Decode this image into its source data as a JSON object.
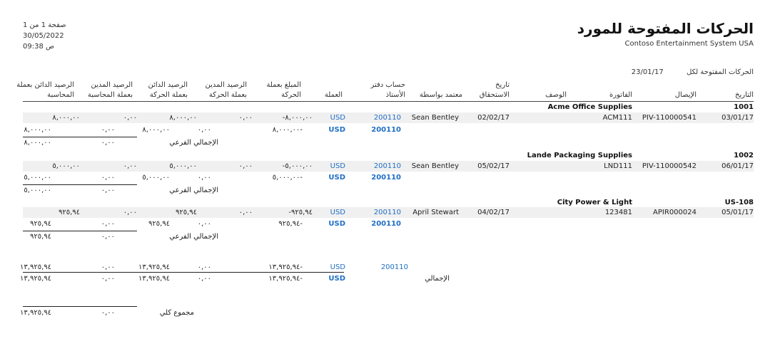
{
  "report": {
    "title": "الحركات المفتوحة للمورد",
    "company": "Contoso Entertainment System USA",
    "page": "صفحة 1 من 1",
    "date": "30/05/2022",
    "time": "09:38 ص",
    "as_of_label": "الحركات المفتوحة لكل",
    "as_of_date": "23/01/17"
  },
  "columns": {
    "date": "التاريخ",
    "voucher": "الإيصال",
    "invoice": "الفاتورة",
    "description": "الوصف",
    "due_date": "تاريخ الاستحقاق",
    "approved_by": "معتمد بواسطة",
    "ledger_account": "حساب دفتر الأستاذ",
    "currency": "العملة",
    "amount_cur": "المبلغ بعملة الحركة",
    "debit_cur": "الرصيد المدين بعملة الحركة",
    "credit_cur": "الرصيد الدائن بعملة الحركة",
    "debit_acc": "الرصيد المدين بعملة المحاسبة",
    "credit_acc": "الرصيد الدائن بعملة المحاسبة"
  },
  "vendors": [
    {
      "id": "1001",
      "name": "Acme Office Supplies",
      "date": "03/01/17",
      "voucher": "PIV-110000541",
      "invoice": "ACM111",
      "due": "02/02/17",
      "approver": "Sean Bentley",
      "ledger": "200110",
      "currency": "USD",
      "amount": "-٨,٠٠٠,٠٠",
      "debit_cur": "٠,٠٠",
      "credit_cur": "٨,٠٠٠,٠٠",
      "debit_acc": "٠,٠٠",
      "credit_acc": "٨,٠٠٠,٠٠",
      "sum_ledger": "200110",
      "sum_currency": "USD",
      "sum_amount": "٨,٠٠٠,٠٠-",
      "sum_debit_cur": "٠,٠٠",
      "sum_credit_cur": "٨,٠٠٠,٠٠",
      "sum_debit_acc": "٠,٠٠",
      "sum_credit_acc": "٨,٠٠٠,٠٠",
      "sub_label": "الإجمالي الفرعي",
      "sub_debit_acc": "٠,٠٠",
      "sub_credit_acc": "٨,٠٠٠,٠٠"
    },
    {
      "id": "1002",
      "name": "Lande Packaging Supplies",
      "date": "06/01/17",
      "voucher": "PIV-110000542",
      "invoice": "LND111",
      "due": "05/02/17",
      "approver": "Sean Bentley",
      "ledger": "200110",
      "currency": "USD",
      "amount": "-٥,٠٠٠,٠٠",
      "debit_cur": "٠,٠٠",
      "credit_cur": "٥,٠٠٠,٠٠",
      "debit_acc": "٠,٠٠",
      "credit_acc": "٥,٠٠٠,٠٠",
      "sum_ledger": "200110",
      "sum_currency": "USD",
      "sum_amount": "٥,٠٠٠,٠٠-",
      "sum_debit_cur": "٠,٠٠",
      "sum_credit_cur": "٥,٠٠٠,٠٠",
      "sum_debit_acc": "٠,٠٠",
      "sum_credit_acc": "٥,٠٠٠,٠٠",
      "sub_label": "الإجمالي الفرعي",
      "sub_debit_acc": "٠,٠٠",
      "sub_credit_acc": "٥,٠٠٠,٠٠"
    },
    {
      "id": "US-108",
      "name": "City Power & Light",
      "date": "05/01/17",
      "voucher": "APIR000024",
      "invoice": "123481",
      "due": "04/02/17",
      "approver": "April Stewart",
      "ledger": "200110",
      "currency": "USD",
      "amount": "-٩٢٥,٩٤",
      "debit_cur": "٠,٠٠",
      "credit_cur": "٩٢٥,٩٤",
      "debit_acc": "٠,٠٠",
      "credit_acc": "٩٢٥,٩٤",
      "sum_ledger": "200110",
      "sum_currency": "USD",
      "sum_amount": "٩٢٥,٩٤-",
      "sum_debit_cur": "٠,٠٠",
      "sum_credit_cur": "٩٢٥,٩٤",
      "sum_debit_acc": "٠,٠٠",
      "sum_credit_acc": "٩٢٥,٩٤",
      "sub_label": "الإجمالي الفرعي",
      "sub_debit_acc": "٠,٠٠",
      "sub_credit_acc": "٩٢٥,٩٤"
    }
  ],
  "totals": {
    "ledger": "200110",
    "currency": "USD",
    "amount": "١٣,٩٢٥,٩٤-",
    "debit_cur": "٠,٠٠",
    "credit_cur": "١٣,٩٢٥,٩٤",
    "debit_acc": "٠,٠٠",
    "credit_acc": "١٣,٩٢٥,٩٤",
    "total_label": "الإجمالي",
    "t_currency": "USD",
    "t_amount": "١٣,٩٢٥,٩٤-",
    "t_debit_cur": "٠,٠٠",
    "t_credit_cur": "١٣,٩٢٥,٩٤",
    "t_debit_acc": "٠,٠٠",
    "t_credit_acc": "١٣,٩٢٥,٩٤",
    "grand_label": "مجموع كلي",
    "grand_debit_acc": "٠,٠٠",
    "grand_credit_acc": "١٣,٩٢٥,٩٤"
  }
}
